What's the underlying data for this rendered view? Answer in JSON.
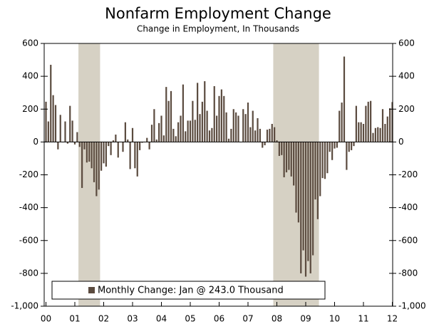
{
  "chart_data": {
    "type": "bar",
    "title": "Nonfarm Employment Change",
    "subtitle": "Change in Employment, In Thousands",
    "categories": [
      "00",
      null,
      null,
      null,
      null,
      null,
      null,
      null,
      null,
      null,
      null,
      null,
      "01",
      null,
      null,
      null,
      null,
      null,
      null,
      null,
      null,
      null,
      null,
      null,
      "02",
      null,
      null,
      null,
      null,
      null,
      null,
      null,
      null,
      null,
      null,
      null,
      "03",
      null,
      null,
      null,
      null,
      null,
      null,
      null,
      null,
      null,
      null,
      null,
      "04",
      null,
      null,
      null,
      null,
      null,
      null,
      null,
      null,
      null,
      null,
      null,
      "05",
      null,
      null,
      null,
      null,
      null,
      null,
      null,
      null,
      null,
      null,
      null,
      "06",
      null,
      null,
      null,
      null,
      null,
      null,
      null,
      null,
      null,
      null,
      null,
      "07",
      null,
      null,
      null,
      null,
      null,
      null,
      null,
      null,
      null,
      null,
      null,
      "08",
      null,
      null,
      null,
      null,
      null,
      null,
      null,
      null,
      null,
      null,
      null,
      "09",
      null,
      null,
      null,
      null,
      null,
      null,
      null,
      null,
      null,
      null,
      null,
      "10",
      null,
      null,
      null,
      null,
      null,
      null,
      null,
      null,
      null,
      null,
      null,
      "11",
      null,
      null,
      null,
      null,
      null,
      null,
      null,
      null,
      null,
      null,
      null,
      "12"
    ],
    "series": [
      {
        "name": "Monthly Change: Jan @ 243.0 Thousand",
        "color": "#5b4b3f",
        "values": [
          245,
          125,
          470,
          285,
          225,
          -45,
          165,
          0,
          125,
          -10,
          220,
          130,
          -15,
          60,
          -30,
          -280,
          -45,
          -125,
          -120,
          -160,
          -245,
          -330,
          -290,
          -175,
          -130,
          -150,
          -25,
          -80,
          10,
          45,
          -95,
          0,
          -60,
          120,
          15,
          -165,
          85,
          -160,
          -210,
          -50,
          -5,
          0,
          25,
          -45,
          105,
          200,
          15,
          115,
          160,
          40,
          335,
          250,
          310,
          80,
          35,
          120,
          160,
          350,
          65,
          130,
          130,
          250,
          135,
          360,
          170,
          245,
          370,
          190,
          70,
          85,
          340,
          160,
          280,
          320,
          280,
          180,
          20,
          80,
          200,
          180,
          160,
          0,
          200,
          170,
          240,
          90,
          190,
          70,
          145,
          80,
          -35,
          -20,
          75,
          80,
          110,
          90,
          10,
          -85,
          -80,
          -215,
          -185,
          -170,
          -210,
          -265,
          -430,
          -490,
          -800,
          -660,
          -820,
          -725,
          -800,
          -690,
          -350,
          -470,
          -330,
          -220,
          -225,
          -190,
          -60,
          -110,
          -40,
          -35,
          190,
          240,
          520,
          -170,
          -60,
          -50,
          -25,
          220,
          120,
          120,
          110,
          220,
          245,
          250,
          55,
          85,
          90,
          85,
          200,
          110,
          155,
          205,
          243
        ]
      }
    ],
    "recession_bands": [
      {
        "from": 14,
        "to": 22,
        "color": "#d6d1c4"
      },
      {
        "from": 95,
        "to": 113,
        "color": "#d6d1c4"
      }
    ],
    "ylim": [
      -1000,
      600
    ],
    "yticks": [
      {
        "value": -1000,
        "label": "-1,000"
      },
      -800,
      -600,
      -400,
      -200,
      0,
      200,
      400,
      600
    ],
    "y2lim": [
      -1000,
      600
    ],
    "y2ticks": [
      {
        "value": -1000,
        "label": "-1,000"
      },
      -800,
      -600,
      -400,
      -200,
      0,
      200,
      400,
      600
    ]
  }
}
